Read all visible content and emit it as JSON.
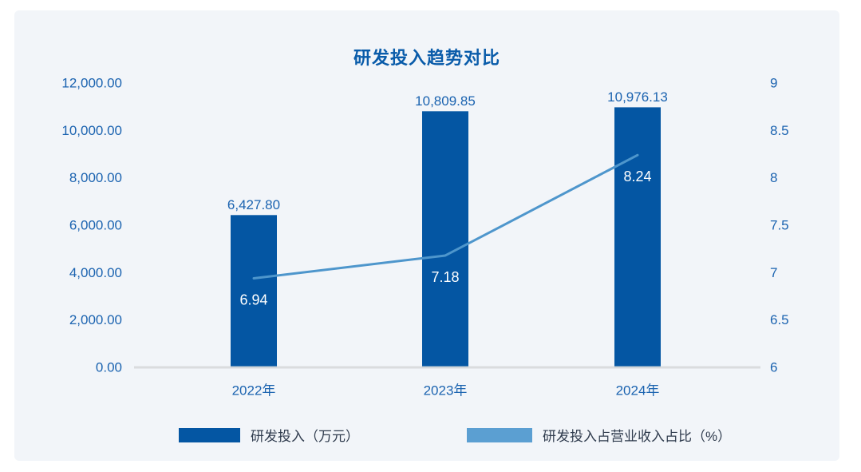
{
  "colors": {
    "page_background": "#ffffff",
    "card_background": "#f2f5f9",
    "title_text": "#0a5caa",
    "axis_text": "#1b63b0",
    "bar": "#0456a3",
    "line": "#4e96cc",
    "inline_label_text": "#ffffff",
    "legend_text": "#303c4e",
    "axis_line": "#d8dadc"
  },
  "chart_data": {
    "type": "bar",
    "title": "研发投入趋势对比",
    "categories": [
      "2022年",
      "2023年",
      "2024年"
    ],
    "series": [
      {
        "name": "研发投入（万元）",
        "type": "bar",
        "axis": "left",
        "values": [
          6427.8,
          10809.85,
          10976.13
        ],
        "labels": [
          "6,427.80",
          "10,809.85",
          "10,976.13"
        ]
      },
      {
        "name": "研发投入占营业收入占比（%）",
        "type": "line",
        "axis": "right",
        "values": [
          6.94,
          7.18,
          8.24
        ],
        "labels": [
          "6.94",
          "7.18",
          "8.24"
        ]
      }
    ],
    "left_axis": {
      "min": 0,
      "max": 12000,
      "ticks": [
        "12,000.00",
        "10,000.00",
        "8,000.00",
        "6,000.00",
        "4,000.00",
        "2,000.00",
        "0.00"
      ]
    },
    "right_axis": {
      "min": 6,
      "max": 9,
      "ticks": [
        "9",
        "8.5",
        "8",
        "7.5",
        "7",
        "6.5",
        "6"
      ]
    },
    "grid": false,
    "legend_position": "bottom"
  },
  "legend": {
    "items": [
      {
        "label": "研发投入（万元）",
        "color": "#0456a3"
      },
      {
        "label": "研发投入占营业收入占比（%）",
        "color": "#5b9fd2"
      }
    ]
  }
}
